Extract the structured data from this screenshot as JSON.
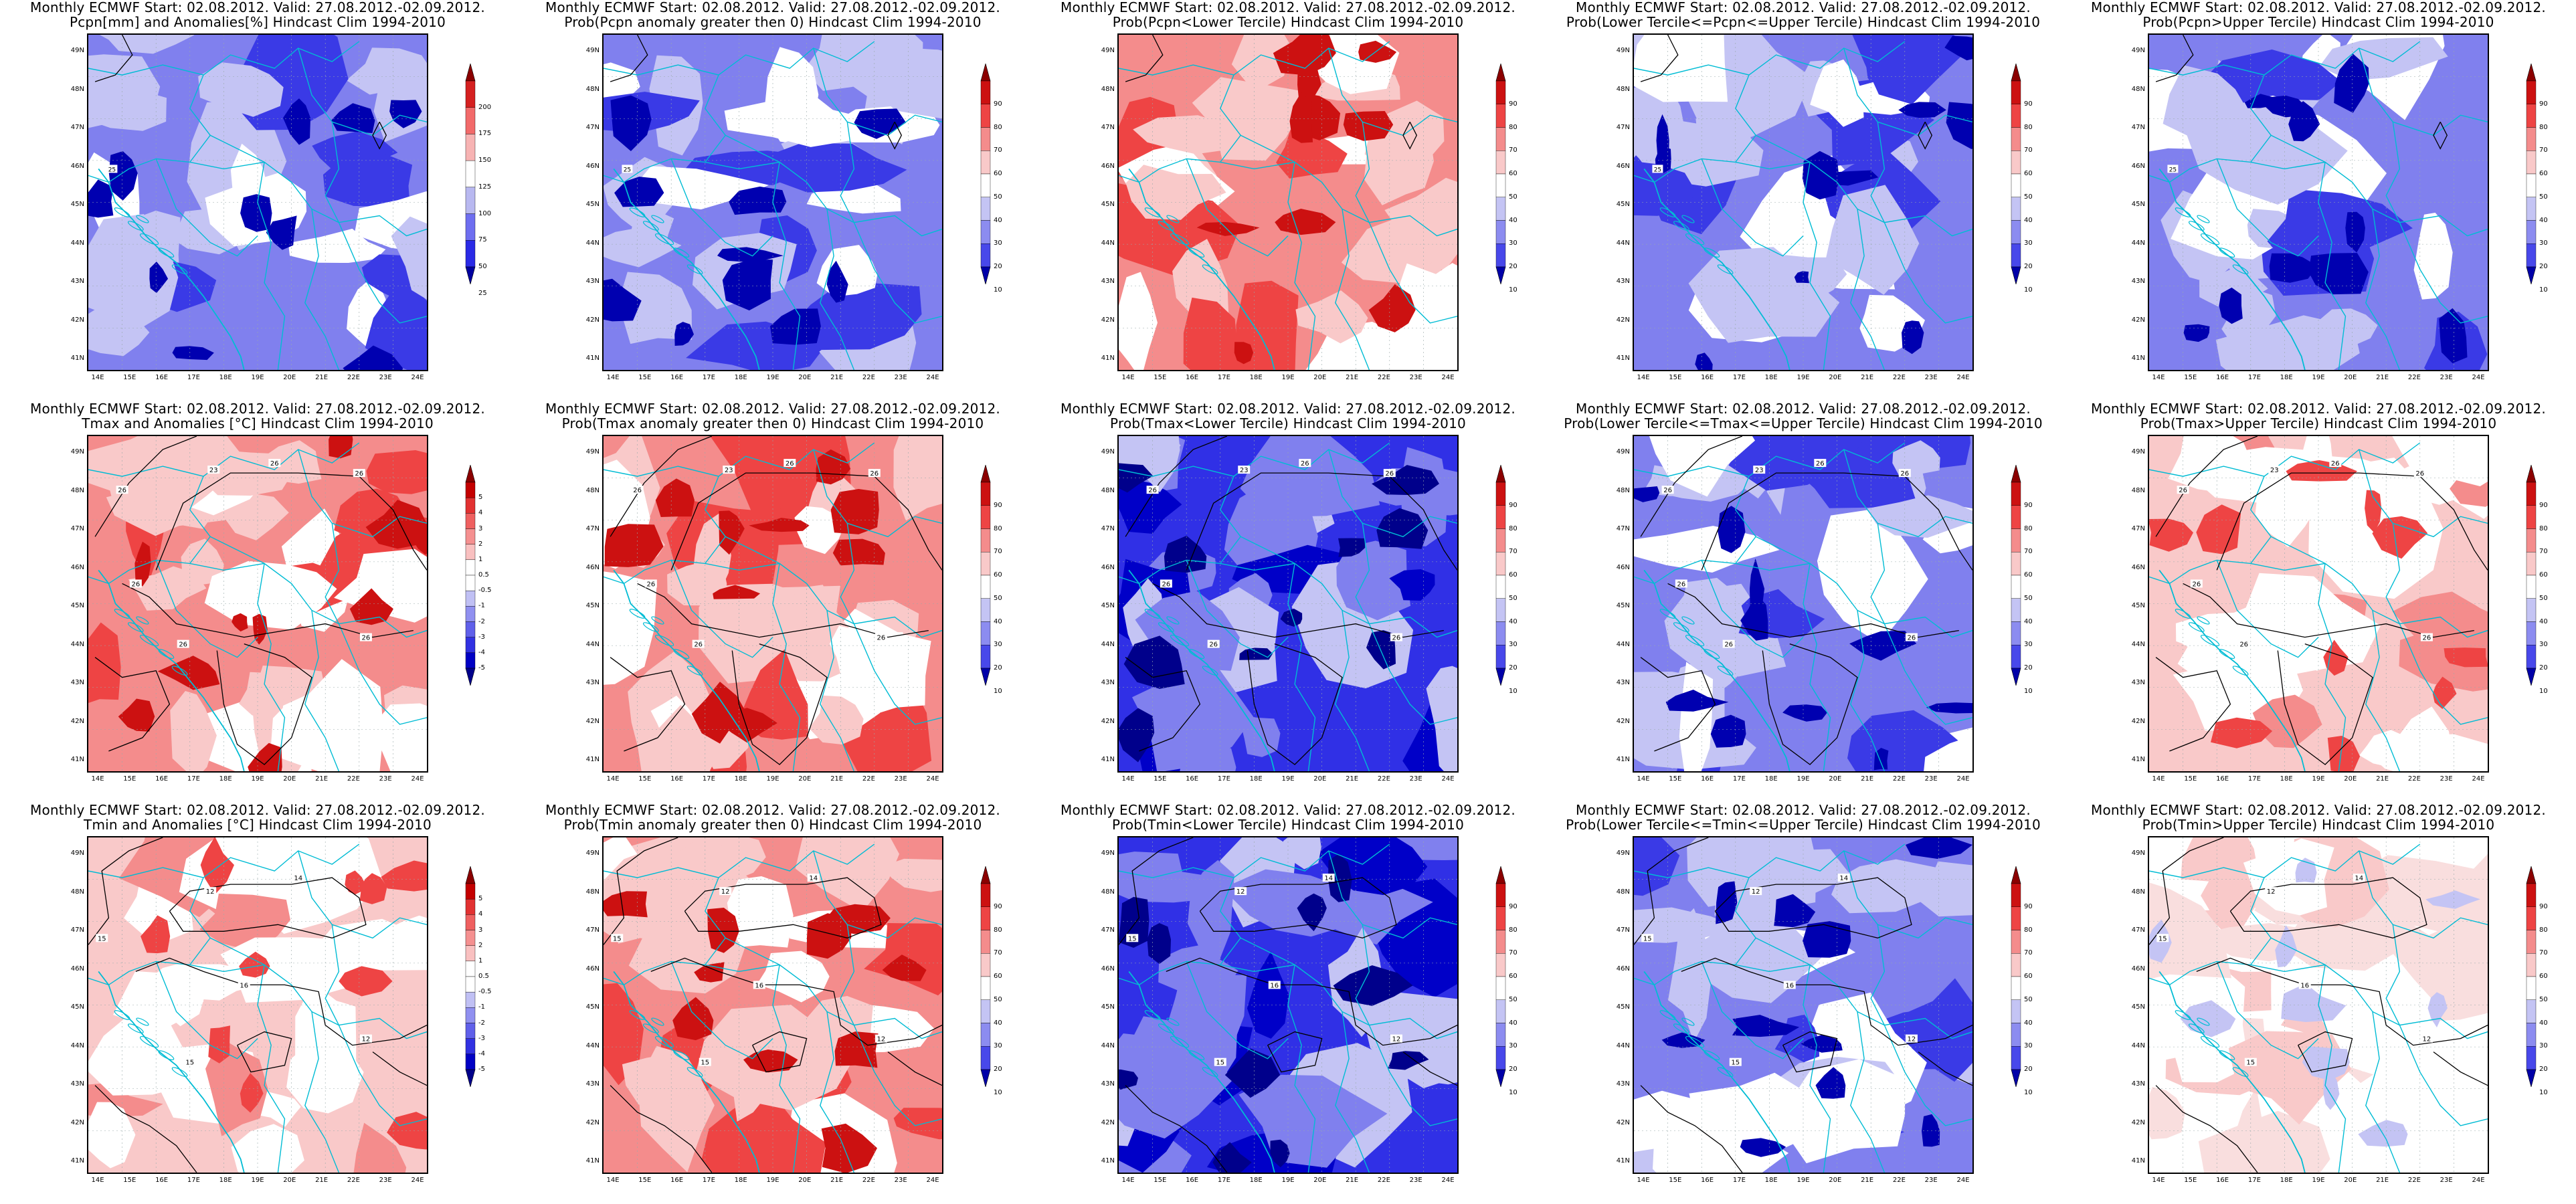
{
  "panels": [
    {
      "title1": "Monthly ECMWF Start: 02.08.2012. Valid: 27.08.2012.-02.09.2012.",
      "title2": "Pcpn[mm] and Anomalies[%] Hindcast Clim 1994-2010",
      "scale": "pcpn",
      "theme": "blue",
      "cityLabel": "25",
      "contours": []
    },
    {
      "title1": "Monthly ECMWF Start: 02.08.2012. Valid: 27.08.2012.-02.09.2012.",
      "title2": "Prob(Pcpn anomaly greater then 0) Hindcast Clim 1994-2010",
      "scale": "prob",
      "theme": "blue",
      "cityLabel": "25",
      "contours": []
    },
    {
      "title1": "Monthly ECMWF Start: 02.08.2012. Valid: 27.08.2012.-02.09.2012.",
      "title2": "Prob(Pcpn<Lower Tercile) Hindcast Clim 1994-2010",
      "scale": "prob",
      "theme": "red",
      "cityLabel": "",
      "contours": []
    },
    {
      "title1": "Monthly ECMWF Start: 02.08.2012. Valid: 27.08.2012.-02.09.2012.",
      "title2": "Prob(Lower Tercile<=Pcpn<=Upper Tercile) Hindcast Clim 1994-2010",
      "scale": "prob",
      "theme": "blue",
      "cityLabel": "25",
      "contours": []
    },
    {
      "title1": "Monthly ECMWF Start: 02.08.2012. Valid: 27.08.2012.-02.09.2012.",
      "title2": "Prob(Pcpn>Upper Tercile) Hindcast Clim 1994-2010",
      "scale": "prob",
      "theme": "blue",
      "cityLabel": "25",
      "contours": []
    },
    {
      "title1": "Monthly ECMWF Start: 02.08.2012. Valid: 27.08.2012.-02.09.2012.",
      "title2": "Tmax and Anomalies [°C] Hindcast Clim 1994-2010",
      "scale": "anom",
      "theme": "red",
      "cityLabel": "",
      "contours": [
        "26",
        "23",
        "26",
        "26",
        "26",
        "26",
        "26"
      ]
    },
    {
      "title1": "Monthly ECMWF Start: 02.08.2012. Valid: 27.08.2012.-02.09.2012.",
      "title2": "Prob(Tmax anomaly greater then 0) Hindcast Clim 1994-2010",
      "scale": "prob",
      "theme": "red",
      "cityLabel": "",
      "contours": [
        "26",
        "23",
        "26",
        "26",
        "26",
        "26",
        "26"
      ]
    },
    {
      "title1": "Monthly ECMWF Start: 02.08.2012. Valid: 27.08.2012.-02.09.2012.",
      "title2": "Prob(Tmax<Lower Tercile) Hindcast Clim 1994-2010",
      "scale": "prob",
      "theme": "deepblue",
      "cityLabel": "",
      "contours": [
        "26",
        "23",
        "26",
        "26",
        "26",
        "26",
        "26"
      ]
    },
    {
      "title1": "Monthly ECMWF Start: 02.08.2012. Valid: 27.08.2012.-02.09.2012.",
      "title2": "Prob(Lower Tercile<=Tmax<=Upper Tercile) Hindcast Clim 1994-2010",
      "scale": "prob",
      "theme": "blue",
      "cityLabel": "",
      "contours": [
        "26",
        "23",
        "26",
        "26",
        "26",
        "26",
        "26"
      ]
    },
    {
      "title1": "Monthly ECMWF Start: 02.08.2012. Valid: 27.08.2012.-02.09.2012.",
      "title2": "Prob(Tmax>Upper Tercile) Hindcast Clim 1994-2010",
      "scale": "prob",
      "theme": "lightred",
      "cityLabel": "",
      "contours": [
        "26",
        "23",
        "26",
        "26",
        "26",
        "26",
        "26"
      ]
    },
    {
      "title1": "Monthly ECMWF Start: 02.08.2012. Valid: 27.08.2012.-02.09.2012.",
      "title2": "Tmin and Anomalies [°C] Hindcast Clim 1994-2010",
      "scale": "anom",
      "theme": "lightred",
      "cityLabel": "",
      "contours": [
        "15",
        "12",
        "14",
        "16",
        "15",
        "12"
      ]
    },
    {
      "title1": "Monthly ECMWF Start: 02.08.2012. Valid: 27.08.2012.-02.09.2012.",
      "title2": "Prob(Tmin anomaly greater then 0) Hindcast Clim 1994-2010",
      "scale": "prob",
      "theme": "red",
      "cityLabel": "",
      "contours": [
        "15",
        "12",
        "14",
        "16",
        "15",
        "12"
      ]
    },
    {
      "title1": "Monthly ECMWF Start: 02.08.2012. Valid: 27.08.2012.-02.09.2012.",
      "title2": "Prob(Tmin<Lower Tercile) Hindcast Clim 1994-2010",
      "scale": "prob",
      "theme": "deepblue",
      "cityLabel": "",
      "contours": [
        "15",
        "12",
        "14",
        "16",
        "15",
        "12"
      ]
    },
    {
      "title1": "Monthly ECMWF Start: 02.08.2012. Valid: 27.08.2012.-02.09.2012.",
      "title2": "Prob(Lower Tercile<=Tmin<=Upper Tercile) Hindcast Clim 1994-2010",
      "scale": "prob",
      "theme": "blue",
      "cityLabel": "",
      "contours": [
        "15",
        "12",
        "14",
        "16",
        "15",
        "12"
      ]
    },
    {
      "title1": "Monthly ECMWF Start: 02.08.2012. Valid: 27.08.2012.-02.09.2012.",
      "title2": "Prob(Tmin>Upper Tercile) Hindcast Clim 1994-2010",
      "scale": "prob",
      "theme": "verylight",
      "cityLabel": "",
      "contours": [
        "15",
        "12",
        "14",
        "16",
        "15",
        "12"
      ]
    }
  ],
  "latLabels": [
    "49N",
    "48N",
    "47N",
    "46N",
    "45N",
    "44N",
    "43N",
    "42N",
    "41N"
  ],
  "lonLabels": [
    "14E",
    "15E",
    "16E",
    "17E",
    "18E",
    "19E",
    "20E",
    "21E",
    "22E",
    "23E",
    "24E"
  ],
  "scales": {
    "pcpn": {
      "ticks": [
        "200",
        "175",
        "150",
        "125",
        "100",
        "75",
        "50",
        "25"
      ],
      "colors": [
        "#8b0000",
        "#d52020",
        "#f26a6a",
        "#f7b3b3",
        "#ffffff",
        "#b8b8f0",
        "#6e6ef0",
        "#2a2ae6",
        "#0000a0"
      ]
    },
    "prob": {
      "ticks": [
        "90",
        "80",
        "70",
        "60",
        "50",
        "40",
        "30",
        "20",
        "10"
      ],
      "colors": [
        "#8b0000",
        "#cc1111",
        "#ee4444",
        "#f48c8c",
        "#f9c9c9",
        "#ffffff",
        "#c4c4f4",
        "#8c8cf0",
        "#4848ea",
        "#0000a8"
      ]
    },
    "anom": {
      "ticks": [
        "5",
        "4",
        "3",
        "2",
        "1",
        "0.5",
        "-0.5",
        "-1",
        "-2",
        "-3",
        "-4",
        "-5"
      ],
      "colors": [
        "#8b0000",
        "#c40000",
        "#e23131",
        "#ef6060",
        "#f59090",
        "#f9c0c0",
        "#ffffff",
        "#ffffff",
        "#c0c0f4",
        "#9090f0",
        "#6060ea",
        "#3131e2",
        "#0000c4",
        "#00008b"
      ]
    }
  },
  "themes": {
    "blue": {
      "base": "#8080ee",
      "light": "#c4c4f4",
      "dark": "#3a3ae6",
      "darker": "#0000b0",
      "white": "#ffffff"
    },
    "deepblue": {
      "base": "#3030e6",
      "light": "#8080ee",
      "dark": "#0000c8",
      "darker": "#00008b",
      "white": "#c4c4f4"
    },
    "red": {
      "base": "#f48c8c",
      "light": "#f9c9c9",
      "dark": "#ee4444",
      "darker": "#cc1111",
      "white": "#ffffff"
    },
    "lightred": {
      "base": "#f9c9c9",
      "light": "#ffffff",
      "dark": "#f48c8c",
      "darker": "#ee4444",
      "white": "#ffffff"
    },
    "verylight": {
      "base": "#ffffff",
      "light": "#f9dede",
      "dark": "#f9c9c9",
      "darker": "#c4c4f4",
      "white": "#ffffff"
    }
  },
  "colors": {
    "border": "#00bcd4",
    "contour": "#000000"
  }
}
